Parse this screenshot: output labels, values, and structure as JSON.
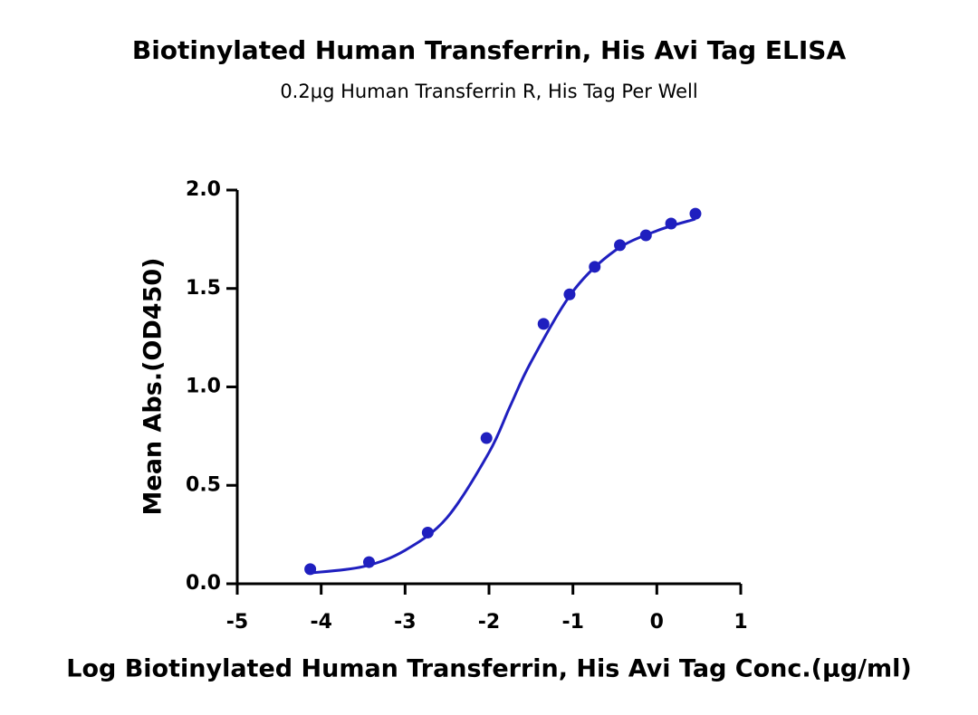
{
  "chart_data": {
    "type": "scatter",
    "title": "Biotinylated Human Transferrin, His Avi Tag ELISA",
    "subtitle": "0.2μg Human Transferrin R, His Tag Per Well",
    "x_label": "Log Biotinylated Human Transferrin, His Avi Tag Conc.(μg/ml)",
    "y_label": "Mean Abs.(OD450)",
    "color": "#1f1fbf",
    "points": {
      "x": [
        -4.13,
        -3.43,
        -2.73,
        -2.03,
        -1.35,
        -1.04,
        -0.74,
        -0.44,
        -0.13,
        0.17,
        0.46
      ],
      "values": [
        0.074,
        0.11,
        0.26,
        0.74,
        1.32,
        1.47,
        1.61,
        1.72,
        1.77,
        1.83,
        1.88
      ]
    },
    "fit": {
      "x": [
        -4.13,
        -3.5,
        -3,
        -2.5,
        -2,
        -1.75,
        -1.5,
        -1,
        -0.5,
        0,
        0.46
      ],
      "values": [
        0.055,
        0.087,
        0.17,
        0.336,
        0.667,
        0.9,
        1.126,
        1.485,
        1.692,
        1.793,
        1.853
      ]
    },
    "xlim": [
      -5,
      1
    ],
    "xticks": [
      -5,
      -4,
      -3,
      -2,
      -1,
      0,
      1
    ],
    "ylim": [
      0,
      2
    ],
    "yticks": [
      {
        "value": 0,
        "label": "0.0"
      },
      {
        "value": 0.5,
        "label": "0.5"
      },
      {
        "value": 1,
        "label": "1.0"
      },
      {
        "value": 1.5,
        "label": "1.5"
      },
      {
        "value": 2,
        "label": "2.0"
      }
    ]
  }
}
